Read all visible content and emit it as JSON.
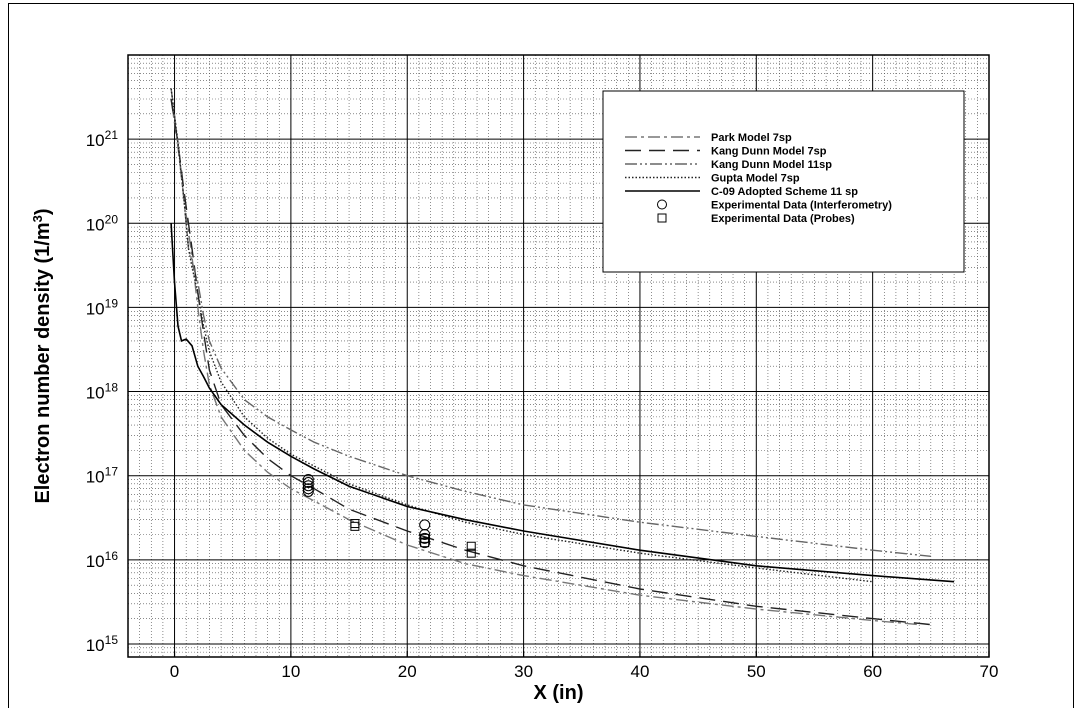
{
  "chart_data": {
    "type": "line",
    "xlabel": "X (in)",
    "ylabel_main": "Electron number density (1/m",
    "ylabel_sup": "3",
    "ylabel_close": ")",
    "x_range": [
      -4,
      70
    ],
    "y_range": [
      700000000000000.0,
      1e+22
    ],
    "y_scale": "log",
    "grid": true,
    "legend_position": "top-right",
    "x_ticks": [
      {
        "value": 0,
        "label": "0"
      },
      {
        "value": 10,
        "label": "10"
      },
      {
        "value": 20,
        "label": "20"
      },
      {
        "value": 30,
        "label": "30"
      },
      {
        "value": 40,
        "label": "40"
      },
      {
        "value": 50,
        "label": "50"
      },
      {
        "value": 60,
        "label": "60"
      },
      {
        "value": 70,
        "label": "70"
      }
    ],
    "y_ticks": [
      {
        "exp": 15,
        "base": "10",
        "sup": "15"
      },
      {
        "exp": 16,
        "base": "10",
        "sup": "16"
      },
      {
        "exp": 17,
        "base": "10",
        "sup": "17"
      },
      {
        "exp": 18,
        "base": "10",
        "sup": "18"
      },
      {
        "exp": 19,
        "base": "10",
        "sup": "19"
      },
      {
        "exp": 20,
        "base": "10",
        "sup": "20"
      },
      {
        "exp": 21,
        "base": "10",
        "sup": "21"
      }
    ],
    "series": [
      {
        "name": "Park Model 7sp",
        "style": "dashdot",
        "color": "#777777",
        "x": [
          -0.3,
          0.3,
          0.8,
          1.5,
          2.0,
          2.5,
          3.0,
          4.0,
          6.0,
          8.0,
          10.0,
          12.0,
          15.0,
          20.0,
          25.0,
          30.0,
          40.0,
          50.0,
          60.0,
          64.0
        ],
        "y": [
          3e+21,
          8e+20,
          2e+20,
          4e+19,
          1e+19,
          3e+18,
          1.2e+18,
          5e+17,
          2e+17,
          1.1e+17,
          7e+16,
          5e+16,
          3e+16,
          1.5e+16,
          9000000000000000.0,
          6500000000000000.0,
          3800000000000000.0,
          2600000000000000.0,
          1900000000000000.0,
          1700000000000000.0
        ]
      },
      {
        "name": "Kang Dunn Model 7sp",
        "style": "longdash",
        "color": "#222222",
        "x": [
          -0.3,
          0.3,
          0.8,
          1.5,
          2.0,
          2.5,
          3.0,
          4.0,
          6.0,
          8.0,
          10.0,
          12.0,
          15.0,
          20.0,
          25.0,
          30.0,
          40.0,
          50.0,
          60.0,
          65.0
        ],
        "y": [
          3e+21,
          9e+20,
          2.5e+20,
          5e+19,
          1.5e+19,
          5e+18,
          1.8e+18,
          7e+17,
          3e+17,
          1.6e+17,
          1e+17,
          7e+16,
          4e+16,
          2.2e+16,
          1.3e+16,
          8500000000000000.0,
          4500000000000000.0,
          2800000000000000.0,
          2000000000000000.0,
          1700000000000000.0
        ]
      },
      {
        "name": "Kang Dunn Model 11sp",
        "style": "dashdotdot",
        "color": "#666666",
        "x": [
          -0.3,
          0.3,
          0.8,
          1.2,
          1.5,
          2.0,
          2.5,
          3.0,
          4.0,
          6.0,
          8.0,
          10.0,
          12.0,
          15.0,
          20.0,
          25.0,
          30.0,
          40.0,
          50.0,
          60.0,
          65.0
        ],
        "y": [
          4e+21,
          9e+20,
          2e+20,
          5e+19,
          3.5e+19,
          2e+19,
          8e+18,
          4e+18,
          1.9e+18,
          8e+17,
          5e+17,
          3.5e+17,
          2.5e+17,
          1.7e+17,
          1e+17,
          6.5e+16,
          4.5e+16,
          2.8e+16,
          1.9e+16,
          1.3e+16,
          1.1e+16
        ]
      },
      {
        "name": "Gupta Model 7sp",
        "style": "dotted",
        "color": "#222222",
        "x": [
          -0.3,
          0.3,
          0.8,
          1.2,
          1.5,
          2.0,
          2.5,
          3.0,
          4.0,
          6.0,
          8.0,
          10.0,
          12.0,
          15.0,
          20.0,
          25.0,
          30.0,
          40.0,
          50.0,
          60.0
        ],
        "y": [
          4e+21,
          9e+20,
          2e+20,
          5e+19,
          3e+19,
          1.5e+19,
          6e+18,
          3e+18,
          1.3e+18,
          5e+17,
          2.8e+17,
          1.8e+17,
          1.3e+17,
          8e+16,
          4.5e+16,
          2.8e+16,
          2e+16,
          1.2e+16,
          8000000000000000.0,
          5500000000000000.0
        ]
      },
      {
        "name": "C-09 Adopted Scheme 11 sp",
        "style": "solid",
        "color": "#000000",
        "x": [
          -0.3,
          0.0,
          0.3,
          0.6,
          1.0,
          1.5,
          2.0,
          2.5,
          3.0,
          4.0,
          6.0,
          8.0,
          10.0,
          12.0,
          15.0,
          20.0,
          25.0,
          30.0,
          40.0,
          50.0,
          60.0,
          67.0
        ],
        "y": [
          1e+20,
          2e+19,
          6e+18,
          4e+18,
          4.2e+18,
          3.5e+18,
          2e+18,
          1.5e+18,
          1.1e+18,
          7e+17,
          4e+17,
          2.5e+17,
          1.7e+17,
          1.2e+17,
          7.5e+16,
          4.3e+16,
          3e+16,
          2.2e+16,
          1.3e+16,
          8500000000000000.0,
          6500000000000000.0,
          5500000000000000.0
        ]
      },
      {
        "name": "Experimental Data (Interferometry)",
        "style": "marker-circle",
        "color": "#000000",
        "x": [
          11.5,
          11.5,
          11.5,
          11.5,
          11.5,
          21.5,
          21.5,
          21.5,
          21.5
        ],
        "y": [
          9e+16,
          8.3e+16,
          7.6e+16,
          7e+16,
          6.5e+16,
          2.6e+16,
          2e+16,
          1.8e+16,
          1.6e+16
        ]
      },
      {
        "name": "Experimental Data (Probes)",
        "style": "marker-square",
        "color": "#000000",
        "x": [
          15.5,
          15.5,
          21.5,
          21.5,
          25.5,
          25.5
        ],
        "y": [
          2.7e+16,
          2.5e+16,
          1.8e+16,
          1.6e+16,
          1.45e+16,
          1.2e+16
        ]
      }
    ]
  }
}
